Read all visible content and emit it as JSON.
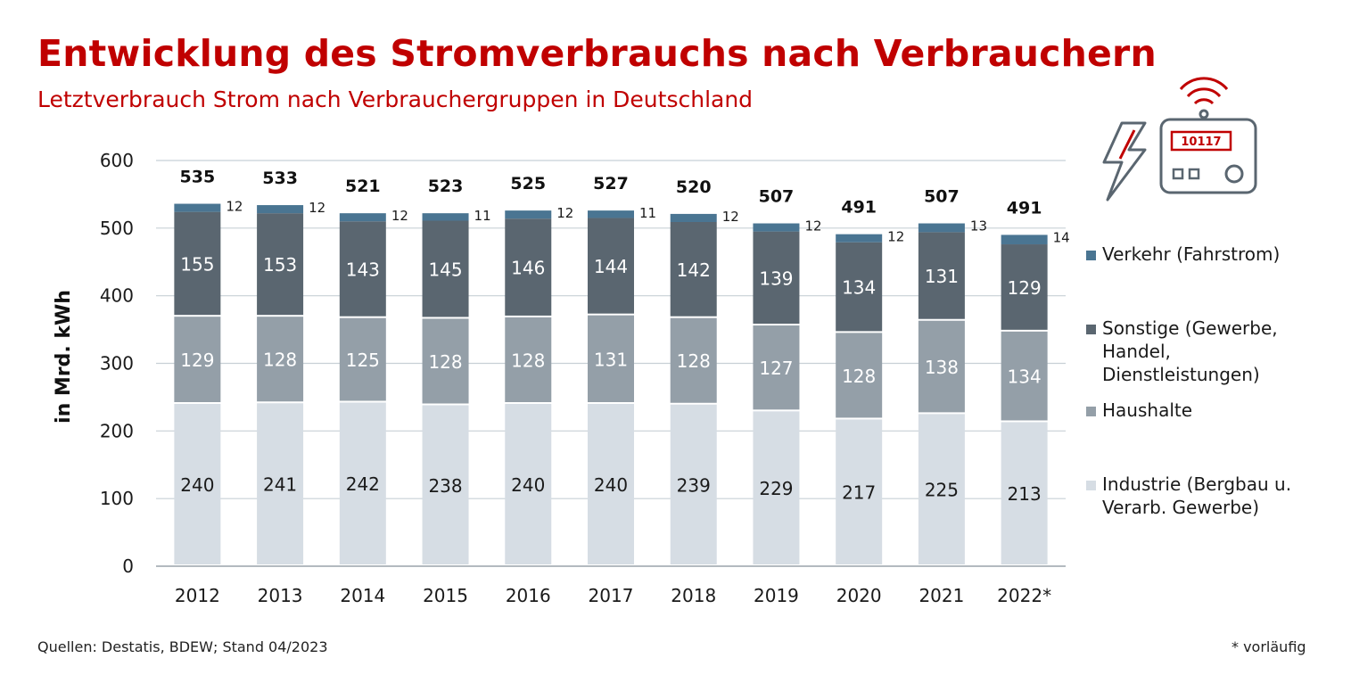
{
  "title": "Entwicklung des Stromverbrauchs nach Verbrauchern",
  "subtitle": "Letztverbrauch Strom nach Verbrauchergruppen in Deutschland",
  "source": "Quellen: Destatis, BDEW; Stand 04/2023",
  "footnote": "* vorläufig",
  "icon": {
    "name": "electricity-meter-icon",
    "meter_reading": "10117",
    "color": "#c00000"
  },
  "colors": {
    "industrie": "#d6dde4",
    "haushalte": "#949fa8",
    "sonstige": "#5a6670",
    "verkehr": "#4a7592",
    "grid": "#c8d0d6",
    "axis": "#9aa3aa"
  },
  "chart_data": {
    "type": "bar",
    "stacked": true,
    "ylabel": "in Mrd. kWh",
    "ylim": [
      0,
      600
    ],
    "yticks": [
      0,
      100,
      200,
      300,
      400,
      500,
      600
    ],
    "grid": true,
    "legend_position": "right",
    "categories": [
      "2012",
      "2013",
      "2014",
      "2015",
      "2016",
      "2017",
      "2018",
      "2019",
      "2020",
      "2021",
      "2022*"
    ],
    "totals": [
      535,
      533,
      521,
      523,
      525,
      527,
      520,
      507,
      491,
      507,
      491
    ],
    "series": [
      {
        "name": "Industrie (Bergbau u.\nVerarb. Gewerbe)",
        "key": "industrie",
        "values": [
          240,
          241,
          242,
          238,
          240,
          240,
          239,
          229,
          217,
          225,
          213
        ]
      },
      {
        "name": "Haushalte",
        "key": "haushalte",
        "values": [
          129,
          128,
          125,
          128,
          128,
          131,
          128,
          127,
          128,
          138,
          134
        ]
      },
      {
        "name": "Sonstige (Gewerbe,\nHandel,\nDienstleistungen)",
        "key": "sonstige",
        "values": [
          155,
          153,
          143,
          145,
          146,
          144,
          142,
          139,
          134,
          131,
          129
        ]
      },
      {
        "name": "Verkehr (Fahrstrom)",
        "key": "verkehr",
        "values": [
          12,
          12,
          12,
          11,
          12,
          11,
          12,
          12,
          12,
          13,
          14
        ]
      }
    ]
  }
}
